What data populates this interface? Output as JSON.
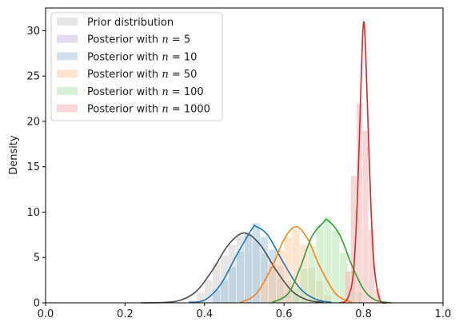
{
  "chart_data": {
    "type": "histogram",
    "xlim": [
      0,
      1
    ],
    "ylim": [
      0,
      32.5
    ],
    "xticks": [
      "0.0",
      "0.2",
      "0.4",
      "0.6",
      "0.8",
      "1.0"
    ],
    "yticks": [
      "0",
      "5",
      "10",
      "15",
      "20",
      "25",
      "30"
    ],
    "xlabel": "",
    "ylabel": "Density",
    "grid": false,
    "legend_position": "top-left",
    "series": [
      {
        "name": "Prior distribution",
        "fill_color": "#cfcfcf",
        "line_color": "#4d4d4d",
        "bin_centers": [
          0.37,
          0.39,
          0.41,
          0.43,
          0.45,
          0.47,
          0.49,
          0.51,
          0.53,
          0.55,
          0.57,
          0.59,
          0.61,
          0.63
        ],
        "hist_values": [
          0.3,
          1.2,
          2.5,
          4.4,
          5.2,
          6.4,
          7.4,
          7.6,
          6.9,
          5.4,
          4.2,
          2.6,
          1.2,
          0.4
        ],
        "kde": {
          "x": [
            0.24,
            0.3,
            0.34,
            0.38,
            0.42,
            0.46,
            0.5,
            0.54,
            0.58,
            0.62,
            0.66,
            0.7
          ],
          "y": [
            0,
            0.05,
            0.3,
            1.3,
            3.6,
            6.4,
            7.7,
            6.4,
            3.6,
            1.3,
            0.3,
            0.05
          ]
        }
      },
      {
        "name": "Posterior with $n = 5$",
        "label_prefix": "Posterior with ",
        "label_math": "n",
        "label_suffix": " = 5",
        "fill_color": "#cdbde6",
        "line_color": "#9467bd",
        "bin_centers": [],
        "hist_values": [],
        "kde": {
          "x": [],
          "y": []
        }
      },
      {
        "name": "Posterior with $n = 10$",
        "label_prefix": "Posterior with ",
        "label_math": "n",
        "label_suffix": " = 10",
        "fill_color": "#a9c8e0",
        "line_color": "#1f77b4",
        "bin_centers": [
          0.43,
          0.45,
          0.47,
          0.49,
          0.51,
          0.53,
          0.55,
          0.57,
          0.59,
          0.61,
          0.63,
          0.65
        ],
        "hist_values": [
          1.5,
          2.5,
          4.0,
          5.7,
          7.6,
          8.8,
          7.3,
          5.9,
          4.1,
          2.2,
          1.0,
          0.3
        ],
        "kde": {
          "x": [
            0.36,
            0.4,
            0.44,
            0.48,
            0.52,
            0.53,
            0.56,
            0.6,
            0.64,
            0.68,
            0.72
          ],
          "y": [
            0.05,
            0.3,
            2.0,
            5.2,
            8.2,
            8.4,
            7.4,
            4.3,
            1.6,
            0.4,
            0.05
          ]
        }
      },
      {
        "name": "Posterior with $n = 50$",
        "label_prefix": "Posterior with ",
        "label_math": "n",
        "label_suffix": " = 50",
        "fill_color": "#ffd0a8",
        "line_color": "#ff7f0e",
        "bin_centers": [
          0.55,
          0.57,
          0.59,
          0.61,
          0.63,
          0.65,
          0.67,
          0.69,
          0.71
        ],
        "hist_values": [
          2.3,
          4.3,
          5.8,
          7.3,
          8.1,
          6.4,
          3.9,
          2.4,
          0.8
        ],
        "kde": {
          "x": [
            0.49,
            0.53,
            0.57,
            0.6,
            0.63,
            0.66,
            0.69,
            0.73,
            0.77
          ],
          "y": [
            0.05,
            1.0,
            4.0,
            7.0,
            8.4,
            7.0,
            4.0,
            1.0,
            0.05
          ]
        }
      },
      {
        "name": "Posterior with $n = 100$",
        "label_prefix": "Posterior with ",
        "label_math": "n",
        "label_suffix": " = 100",
        "fill_color": "#b8e3b4",
        "line_color": "#2ca02c",
        "bin_centers": [
          0.63,
          0.65,
          0.67,
          0.69,
          0.71,
          0.73,
          0.75,
          0.77,
          0.79
        ],
        "hist_values": [
          1.6,
          3.8,
          6.3,
          8.5,
          9.5,
          8.0,
          5.5,
          3.5,
          1.2
        ],
        "kde": {
          "x": [
            0.57,
            0.61,
            0.64,
            0.67,
            0.7,
            0.71,
            0.74,
            0.77,
            0.8,
            0.83,
            0.87
          ],
          "y": [
            0.05,
            1.0,
            3.8,
            7.3,
            8.9,
            9.1,
            7.5,
            4.2,
            1.5,
            0.3,
            0.0
          ]
        }
      },
      {
        "name": "Posterior with $n = 1000$",
        "label_prefix": "Posterior with ",
        "label_math": "n",
        "label_suffix": " = 1000",
        "fill_color": "#f5b6b6",
        "line_color": "#d62728",
        "bin_centers": [
          0.76,
          0.775,
          0.79,
          0.805,
          0.82,
          0.835
        ],
        "hist_values": [
          3.5,
          14.0,
          22.0,
          19.0,
          8.0,
          1.5
        ],
        "kde": {
          "x": [
            0.74,
            0.76,
            0.775,
            0.785,
            0.795,
            0.8,
            0.805,
            0.815,
            0.825,
            0.84,
            0.86
          ],
          "y": [
            0.0,
            0.5,
            3.5,
            12.0,
            26.0,
            30.9,
            28.0,
            15.0,
            5.0,
            0.5,
            0.0
          ]
        }
      }
    ]
  }
}
